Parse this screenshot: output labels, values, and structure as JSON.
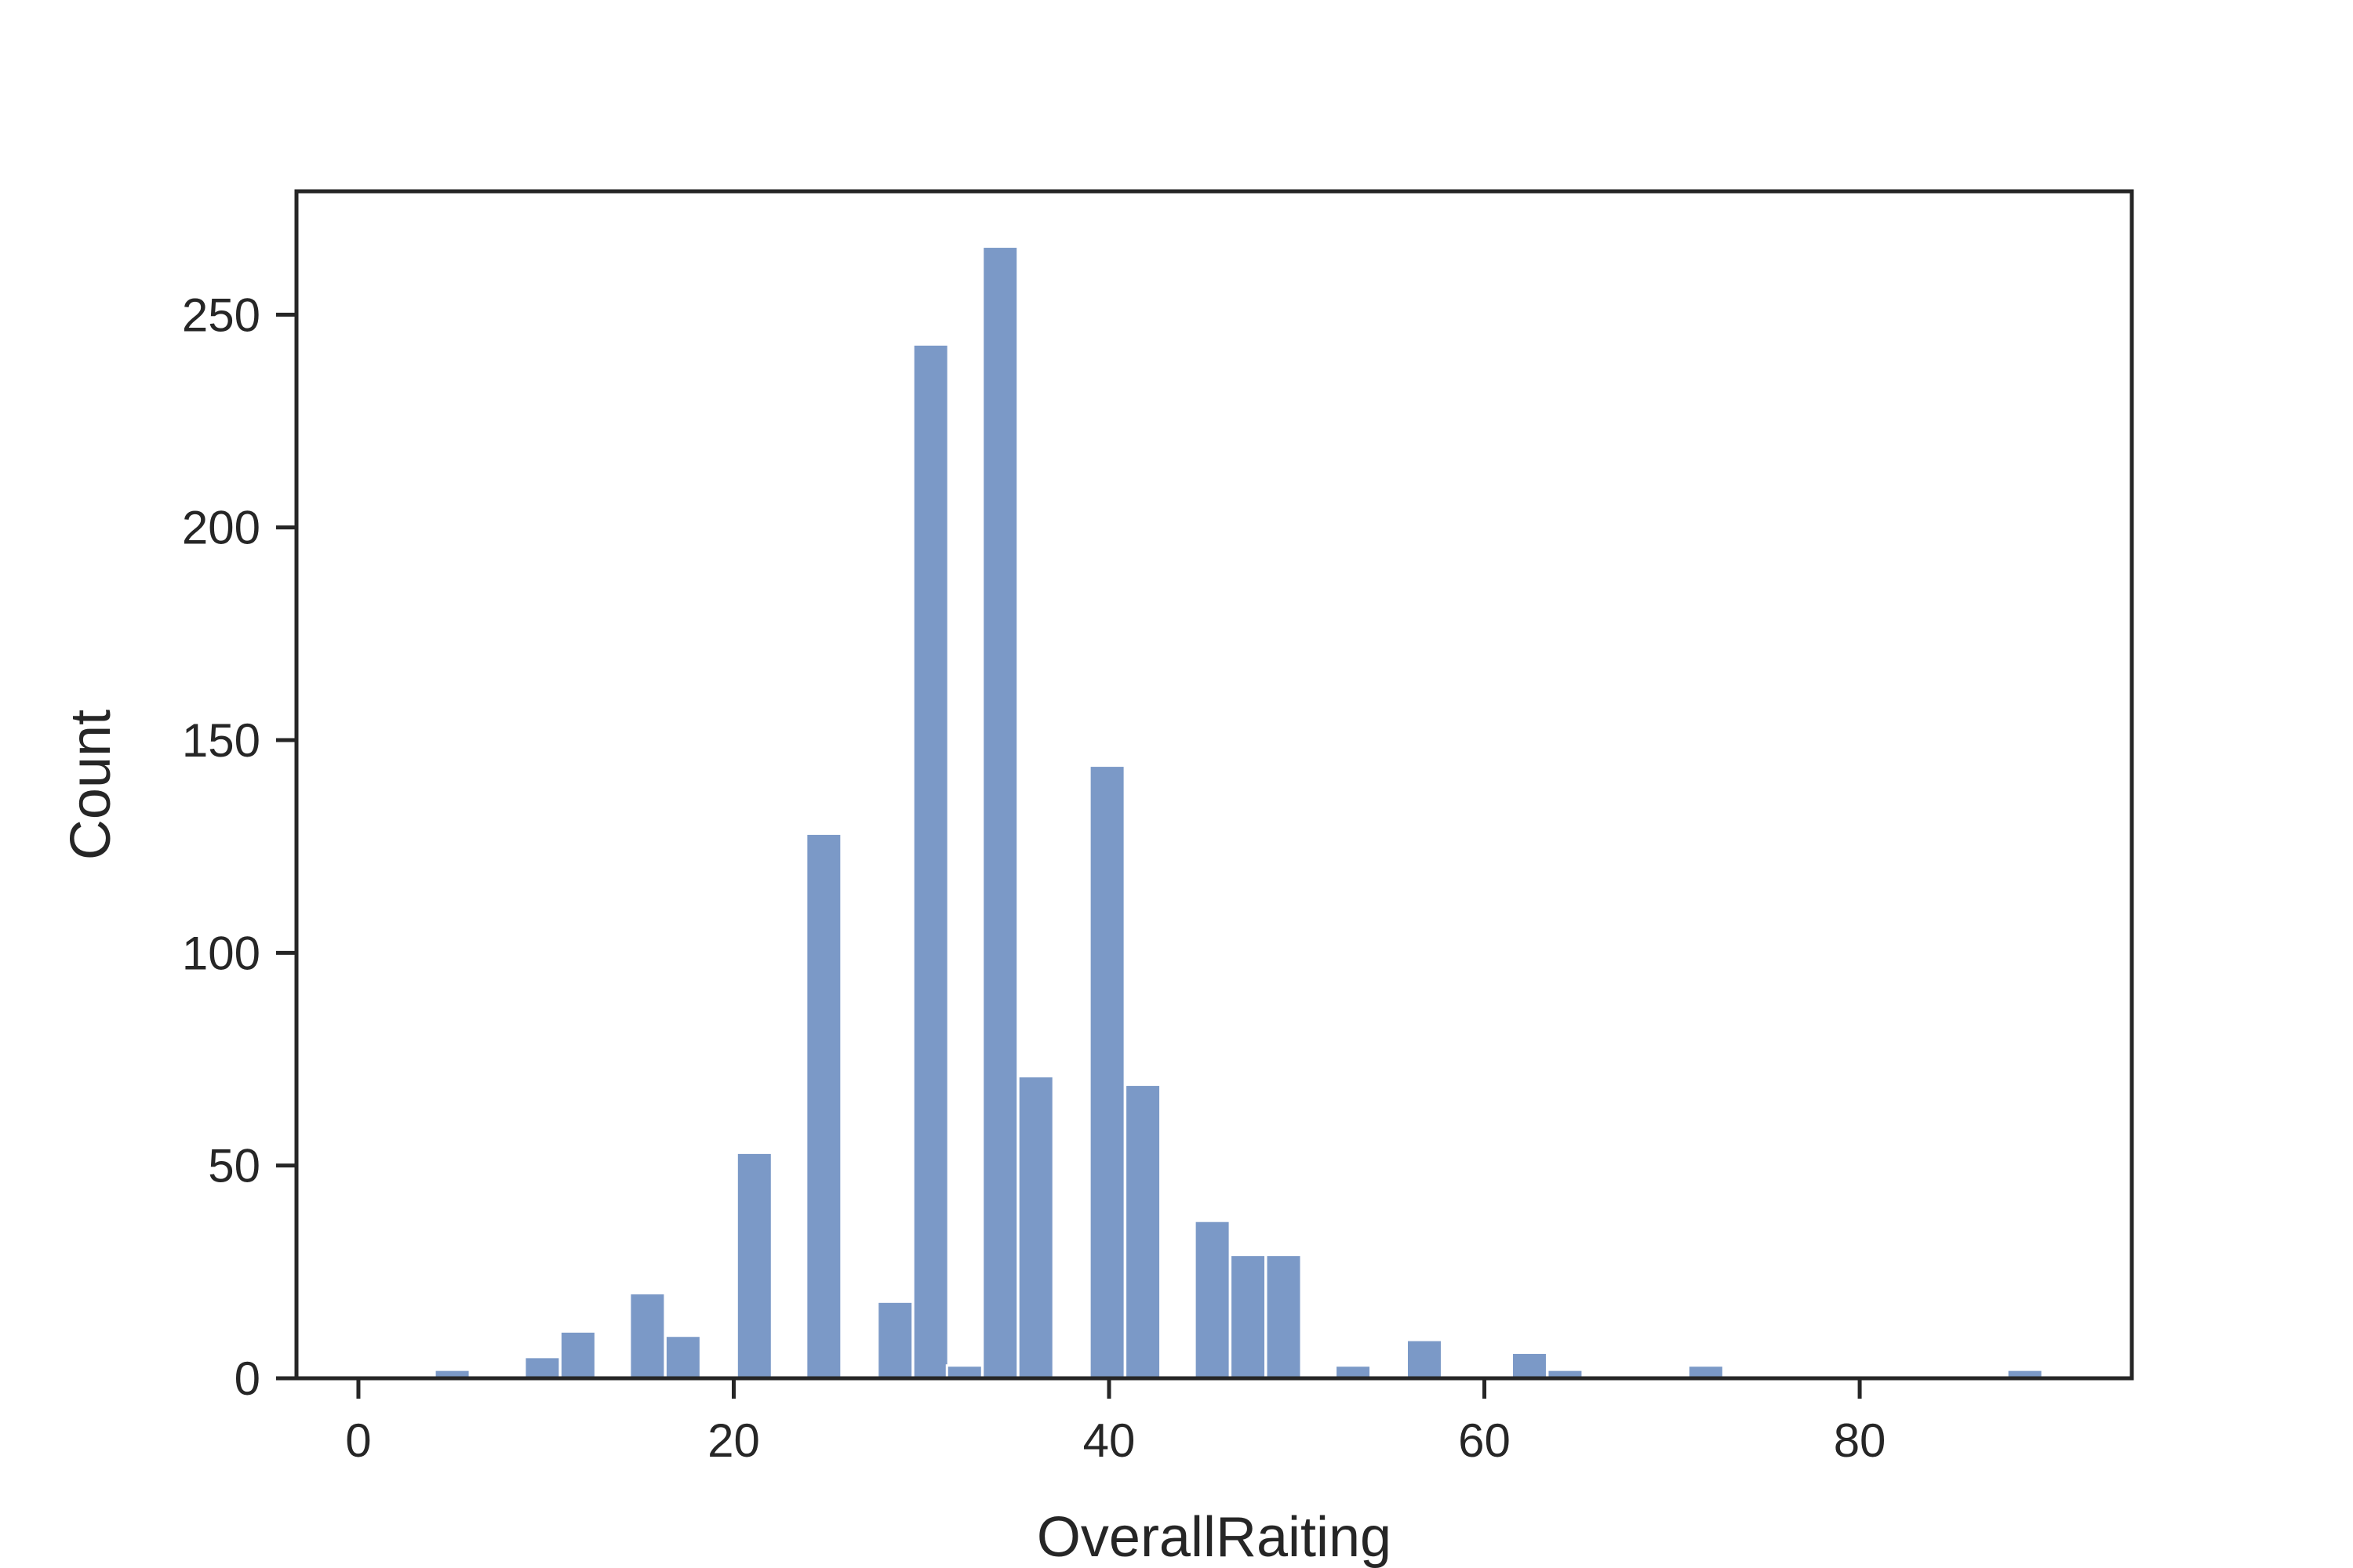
{
  "chart_data": {
    "type": "bar",
    "title": "",
    "xlabel": "OverallRaiting",
    "ylabel": "Count",
    "xlim": [
      -3.3,
      94.5
    ],
    "ylim": [
      0,
      279
    ],
    "xticks": [
      0,
      20,
      40,
      60,
      80
    ],
    "yticks": [
      0,
      50,
      100,
      150,
      200,
      250
    ],
    "bin_width": 1.88,
    "grid": false,
    "legend": "none",
    "bar_color": "#7b99c7",
    "bar_edge_color": "#ffffff",
    "spine_color": "#262626",
    "bins": [
      {
        "x": 5.0,
        "value": 2
      },
      {
        "x": 9.8,
        "value": 5
      },
      {
        "x": 11.7,
        "value": 11
      },
      {
        "x": 15.4,
        "value": 20
      },
      {
        "x": 17.3,
        "value": 10
      },
      {
        "x": 21.1,
        "value": 53
      },
      {
        "x": 24.8,
        "value": 128
      },
      {
        "x": 28.6,
        "value": 18
      },
      {
        "x": 30.5,
        "value": 243
      },
      {
        "x": 32.3,
        "value": 3
      },
      {
        "x": 34.2,
        "value": 266
      },
      {
        "x": 36.1,
        "value": 71
      },
      {
        "x": 39.9,
        "value": 144
      },
      {
        "x": 41.8,
        "value": 69
      },
      {
        "x": 45.5,
        "value": 37
      },
      {
        "x": 47.4,
        "value": 29
      },
      {
        "x": 49.3,
        "value": 29
      },
      {
        "x": 53.0,
        "value": 3
      },
      {
        "x": 56.8,
        "value": 9
      },
      {
        "x": 62.4,
        "value": 6
      },
      {
        "x": 64.3,
        "value": 2
      },
      {
        "x": 71.8,
        "value": 3
      },
      {
        "x": 88.8,
        "value": 2
      }
    ]
  }
}
